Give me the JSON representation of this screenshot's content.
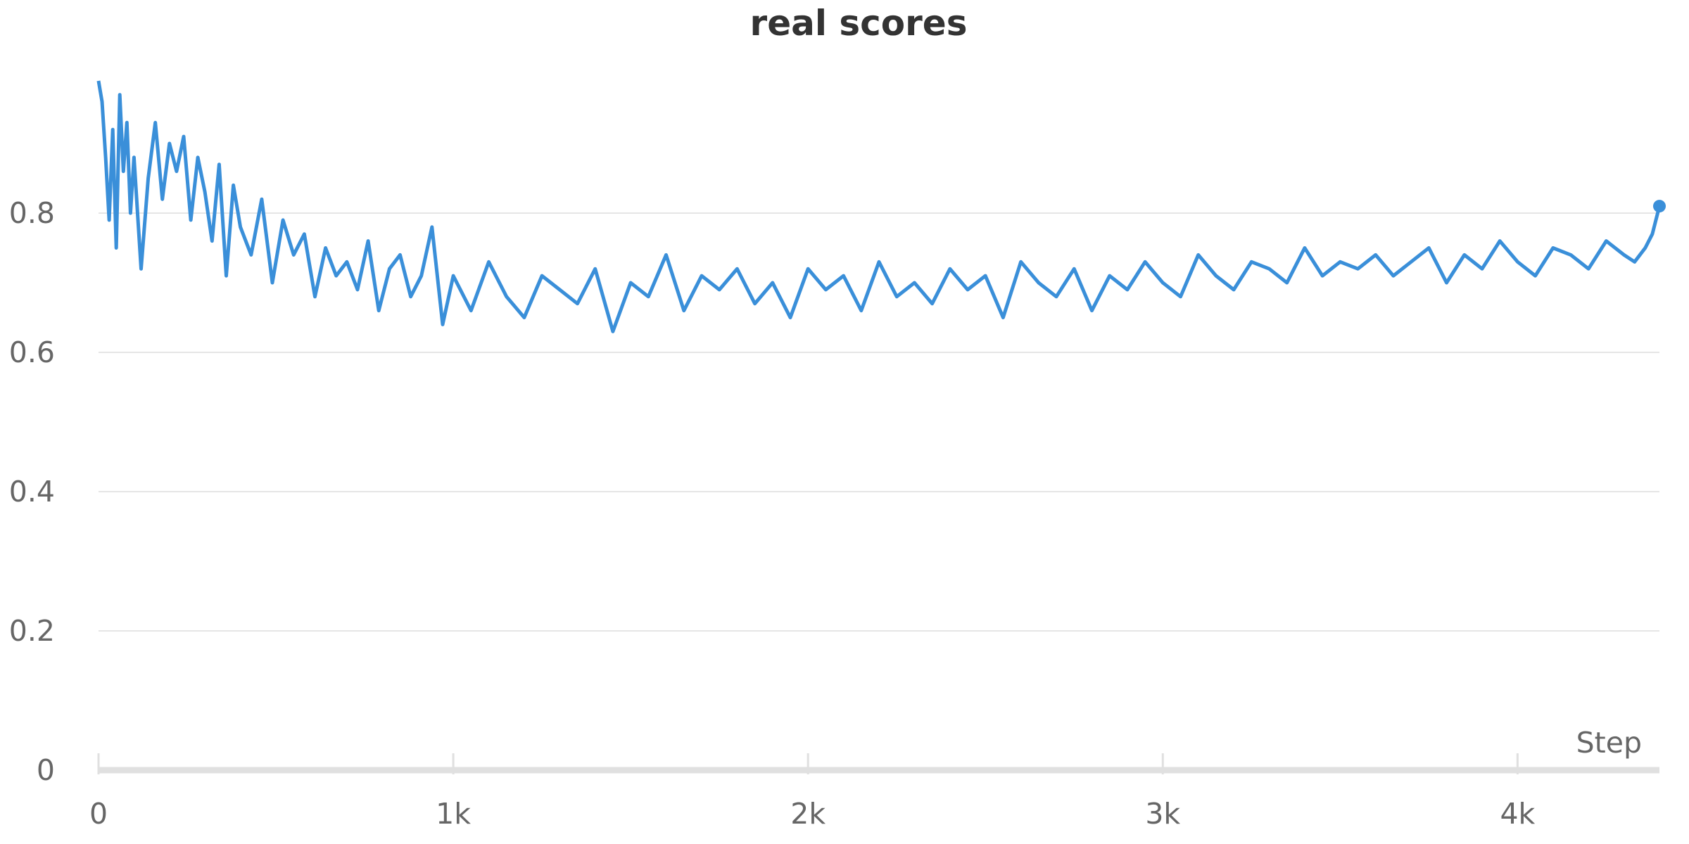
{
  "chart_data": {
    "type": "line",
    "title": "real scores",
    "xlabel": "Step",
    "ylabel": "",
    "xlim": [
      0,
      4400
    ],
    "ylim": [
      0,
      1.0
    ],
    "x_ticks": [
      {
        "value": 0,
        "label": "0"
      },
      {
        "value": 1000,
        "label": "1k"
      },
      {
        "value": 2000,
        "label": "2k"
      },
      {
        "value": 3000,
        "label": "3k"
      },
      {
        "value": 4000,
        "label": "4k"
      }
    ],
    "y_ticks": [
      {
        "value": 0,
        "label": "0"
      },
      {
        "value": 0.2,
        "label": "0.2"
      },
      {
        "value": 0.4,
        "label": "0.4"
      },
      {
        "value": 0.6,
        "label": "0.6"
      },
      {
        "value": 0.8,
        "label": "0.8"
      }
    ],
    "grid": true,
    "colors": {
      "series": "#3a8fd9",
      "grid": "#e6e6e6",
      "axis": "#e0e0e0"
    },
    "series": [
      {
        "name": "",
        "x": [
          0,
          10,
          20,
          30,
          40,
          50,
          60,
          70,
          80,
          90,
          100,
          120,
          140,
          160,
          180,
          200,
          220,
          240,
          260,
          280,
          300,
          320,
          340,
          360,
          380,
          400,
          430,
          460,
          490,
          520,
          550,
          580,
          610,
          640,
          670,
          700,
          730,
          760,
          790,
          820,
          850,
          880,
          910,
          940,
          970,
          1000,
          1050,
          1100,
          1150,
          1200,
          1250,
          1300,
          1350,
          1400,
          1450,
          1500,
          1550,
          1600,
          1650,
          1700,
          1750,
          1800,
          1850,
          1900,
          1950,
          2000,
          2050,
          2100,
          2150,
          2200,
          2250,
          2300,
          2350,
          2400,
          2450,
          2500,
          2550,
          2600,
          2650,
          2700,
          2750,
          2800,
          2850,
          2900,
          2950,
          3000,
          3050,
          3100,
          3150,
          3200,
          3250,
          3300,
          3350,
          3400,
          3450,
          3500,
          3550,
          3600,
          3650,
          3700,
          3750,
          3800,
          3850,
          3900,
          3950,
          4000,
          4050,
          4100,
          4150,
          4200,
          4250,
          4300,
          4330,
          4360,
          4380,
          4400
        ],
        "y": [
          0.99,
          0.96,
          0.88,
          0.79,
          0.92,
          0.75,
          0.97,
          0.86,
          0.93,
          0.8,
          0.88,
          0.72,
          0.85,
          0.93,
          0.82,
          0.9,
          0.86,
          0.91,
          0.79,
          0.88,
          0.83,
          0.76,
          0.87,
          0.71,
          0.84,
          0.78,
          0.74,
          0.82,
          0.7,
          0.79,
          0.74,
          0.77,
          0.68,
          0.75,
          0.71,
          0.73,
          0.69,
          0.76,
          0.66,
          0.72,
          0.74,
          0.68,
          0.71,
          0.78,
          0.64,
          0.71,
          0.66,
          0.73,
          0.68,
          0.65,
          0.71,
          0.69,
          0.67,
          0.72,
          0.63,
          0.7,
          0.68,
          0.74,
          0.66,
          0.71,
          0.69,
          0.72,
          0.67,
          0.7,
          0.65,
          0.72,
          0.69,
          0.71,
          0.66,
          0.73,
          0.68,
          0.7,
          0.67,
          0.72,
          0.69,
          0.71,
          0.65,
          0.73,
          0.7,
          0.68,
          0.72,
          0.66,
          0.71,
          0.69,
          0.73,
          0.7,
          0.68,
          0.74,
          0.71,
          0.69,
          0.73,
          0.72,
          0.7,
          0.75,
          0.71,
          0.73,
          0.72,
          0.74,
          0.71,
          0.73,
          0.75,
          0.7,
          0.74,
          0.72,
          0.76,
          0.73,
          0.71,
          0.75,
          0.74,
          0.72,
          0.76,
          0.74,
          0.73,
          0.75,
          0.77,
          0.81
        ]
      }
    ]
  }
}
